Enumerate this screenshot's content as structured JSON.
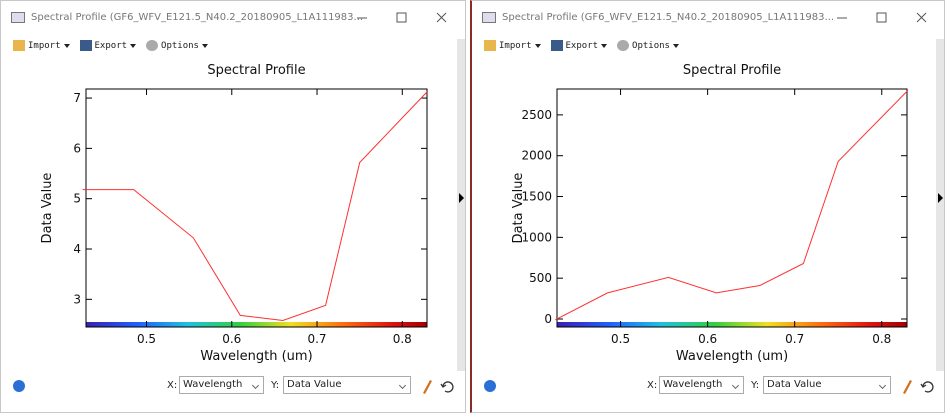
{
  "windows": [
    {
      "title": "Spectral Profile (GF6_WFV_E121.5_N40.2_20180905_L1A111983...",
      "menu": [
        "Import",
        "Export",
        "Options"
      ],
      "x_prefix": "X:",
      "x_select": "Wavelength",
      "y_prefix": "Y:",
      "y_select": "Data Value"
    },
    {
      "title": "Spectral Profile (GF6_WFV_E121.5_N40.2_20180905_L1A111983...",
      "menu": [
        "Import",
        "Export",
        "Options"
      ],
      "x_prefix": "X:",
      "x_select": "Wavelength",
      "y_prefix": "Y:",
      "y_select": "Data Value"
    }
  ],
  "chart_data": [
    {
      "type": "line",
      "title": "Spectral Profile",
      "x_label": "Wavelength (um)",
      "y_label": "Data Value",
      "x": [
        0.425,
        0.485,
        0.555,
        0.61,
        0.66,
        0.71,
        0.75,
        0.83
      ],
      "values": [
        5.18,
        5.18,
        4.22,
        2.68,
        2.58,
        2.88,
        5.72,
        7.14
      ],
      "color": "#ff3030",
      "xlim": [
        0.429,
        0.829
      ],
      "ylim": [
        2.45,
        7.18
      ],
      "xticks": [
        0.5,
        0.6,
        0.7,
        0.8
      ],
      "yticks": [
        3,
        4,
        5,
        6,
        7
      ]
    },
    {
      "type": "line",
      "title": "Spectral Profile",
      "x_label": "Wavelength (um)",
      "y_label": "Data Value",
      "x": [
        0.425,
        0.485,
        0.555,
        0.61,
        0.66,
        0.71,
        0.75,
        0.83
      ],
      "values": [
        -10,
        320,
        510,
        320,
        410,
        680,
        1930,
        2800
      ],
      "color": "#ff3030",
      "xlim": [
        0.427,
        0.829
      ],
      "ylim": [
        -98,
        2817
      ],
      "xticks": [
        0.5,
        0.6,
        0.7,
        0.8
      ],
      "yticks": [
        0,
        500,
        1000,
        1500,
        2000,
        2500
      ]
    }
  ]
}
